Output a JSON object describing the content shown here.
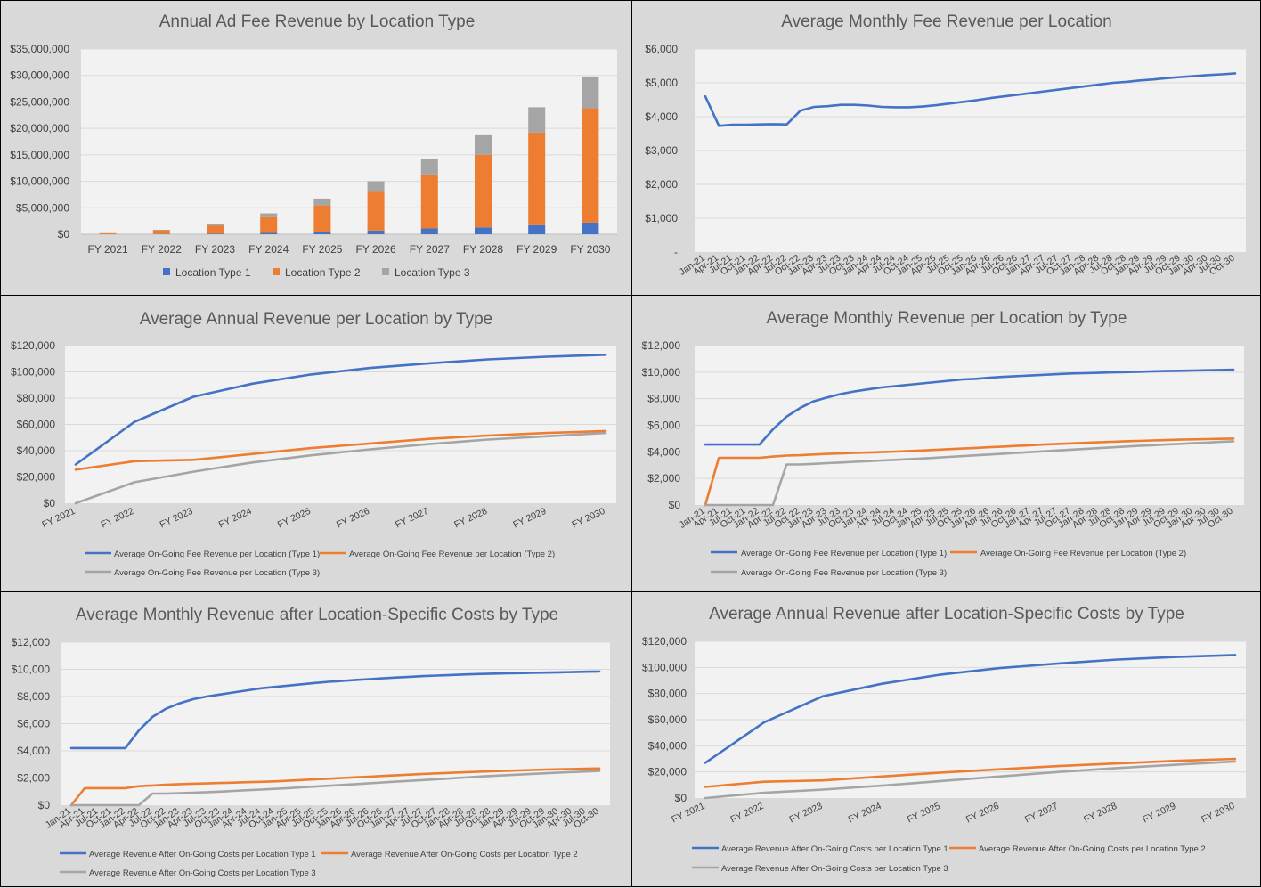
{
  "colors": {
    "type1": "#4472c4",
    "type2": "#ed7d31",
    "type3": "#a5a5a5",
    "plot_bg": "#f2f2f2",
    "panel_bg": "#d9d9d9",
    "grid": "#d9d9d9"
  },
  "chart_data": [
    {
      "id": "annual-ad-fee",
      "type": "bar",
      "stacked": true,
      "title": "Annual Ad Fee Revenue by Location Type",
      "categories": [
        "FY 2021",
        "FY 2022",
        "FY 2023",
        "FY 2024",
        "FY 2025",
        "FY 2026",
        "FY 2027",
        "FY 2028",
        "FY 2029",
        "FY 2030"
      ],
      "series": [
        {
          "name": "Location Type 1",
          "values": [
            20000,
            50000,
            100000,
            250000,
            450000,
            700000,
            1100000,
            1300000,
            1700000,
            2200000
          ]
        },
        {
          "name": "Location Type 2",
          "values": [
            180000,
            700000,
            1500000,
            3000000,
            5000000,
            7300000,
            10200000,
            13700000,
            17500000,
            21600000
          ]
        },
        {
          "name": "Location Type 3",
          "values": [
            0,
            100000,
            300000,
            700000,
            1300000,
            2000000,
            2900000,
            3700000,
            4800000,
            6000000
          ]
        }
      ],
      "y_ticks": [
        "$0",
        "$5,000,000",
        "$10,000,000",
        "$15,000,000",
        "$20,000,000",
        "$25,000,000",
        "$30,000,000",
        "$35,000,000"
      ],
      "ylim": [
        0,
        35000000
      ],
      "legend": "bottom",
      "grid": true
    },
    {
      "id": "avg-monthly-fee",
      "type": "line",
      "title": "Average Monthly Fee Revenue per Location",
      "x_labels": [
        "Jan-21",
        "Apr-21",
        "Jul-21",
        "Oct-21",
        "Jan-22",
        "Apr-22",
        "Jul-22",
        "Oct-22",
        "Jan-23",
        "Apr-23",
        "Jul-23",
        "Oct-23",
        "Jan-24",
        "Apr-24",
        "Jul-24",
        "Oct-24",
        "Jan-25",
        "Apr-25",
        "Jul-25",
        "Oct-25",
        "Jan-26",
        "Apr-26",
        "Jul-26",
        "Oct-26",
        "Jan-27",
        "Apr-27",
        "Jul-27",
        "Oct-27",
        "Jan-28",
        "Apr-28",
        "Jul-28",
        "Oct-28",
        "Jan-29",
        "Apr-29",
        "Jul-29",
        "Oct-29",
        "Jan-30",
        "Apr-30",
        "Jul-30",
        "Oct-30"
      ],
      "series": [
        {
          "values": [
            4600,
            3730,
            3760,
            3760,
            3770,
            3780,
            3770,
            4180,
            4290,
            4310,
            4350,
            4350,
            4330,
            4290,
            4280,
            4280,
            4300,
            4340,
            4390,
            4440,
            4490,
            4550,
            4600,
            4650,
            4700,
            4750,
            4800,
            4850,
            4900,
            4950,
            5000,
            5030,
            5070,
            5100,
            5140,
            5170,
            5200,
            5230,
            5250,
            5280
          ]
        }
      ],
      "y_ticks": [
        "-",
        "$1,000",
        "$2,000",
        "$3,000",
        "$4,000",
        "$5,000",
        "$6,000"
      ],
      "ylim": [
        0,
        6000
      ],
      "grid": true
    },
    {
      "id": "avg-annual-rev",
      "type": "line",
      "title": "Average Annual Revenue per Location by Type",
      "x_labels": [
        "FY 2021",
        "FY 2022",
        "FY 2023",
        "FY 2024",
        "FY 2025",
        "FY 2026",
        "FY 2027",
        "FY 2028",
        "FY 2029",
        "FY 2030"
      ],
      "series": [
        {
          "name": "Average On-Going Fee Revenue per Location (Type 1)",
          "values": [
            29500,
            62000,
            81000,
            91000,
            98000,
            103000,
            106500,
            109500,
            111500,
            113000
          ]
        },
        {
          "name": "Average On-Going Fee Revenue per Location (Type 2)",
          "values": [
            25500,
            32000,
            33000,
            37500,
            42000,
            45500,
            49000,
            51500,
            53500,
            55000
          ]
        },
        {
          "name": "Average On-Going Fee Revenue per Location (Type 3)",
          "values": [
            0,
            16000,
            24000,
            31000,
            36500,
            41000,
            45000,
            48500,
            51000,
            53500
          ]
        }
      ],
      "y_ticks": [
        "$0",
        "$20,000",
        "$40,000",
        "$60,000",
        "$80,000",
        "$100,000",
        "$120,000"
      ],
      "ylim": [
        0,
        120000
      ],
      "legend": "bottom",
      "grid": true
    },
    {
      "id": "avg-monthly-rev",
      "type": "line",
      "title": "Average Monthly Revenue per Location by Type",
      "x_labels": [
        "Jan-21",
        "Apr-21",
        "Jul-21",
        "Oct-21",
        "Jan-22",
        "Apr-22",
        "Jul-22",
        "Oct-22",
        "Jan-23",
        "Apr-23",
        "Jul-23",
        "Oct-23",
        "Jan-24",
        "Apr-24",
        "Jul-24",
        "Oct-24",
        "Jan-25",
        "Apr-25",
        "Jul-25",
        "Oct-25",
        "Jan-26",
        "Apr-26",
        "Jul-26",
        "Oct-26",
        "Jan-27",
        "Apr-27",
        "Jul-27",
        "Oct-27",
        "Jan-28",
        "Apr-28",
        "Jul-28",
        "Oct-28",
        "Jan-29",
        "Apr-29",
        "Jul-29",
        "Oct-29",
        "Jan-30",
        "Apr-30",
        "Jul-30",
        "Oct-30"
      ],
      "series": [
        {
          "name": "Average On-Going Fee Revenue per Location (Type 1)",
          "values": [
            4550,
            4550,
            4550,
            4550,
            4550,
            5700,
            6650,
            7300,
            7800,
            8100,
            8350,
            8550,
            8700,
            8850,
            8950,
            9050,
            9150,
            9250,
            9350,
            9450,
            9500,
            9580,
            9650,
            9700,
            9750,
            9800,
            9850,
            9900,
            9920,
            9950,
            9980,
            10000,
            10030,
            10060,
            10080,
            10100,
            10120,
            10140,
            10160,
            10180
          ]
        },
        {
          "name": "Average On-Going Fee Revenue per Location (Type 2)",
          "values": [
            0,
            3550,
            3550,
            3550,
            3550,
            3650,
            3720,
            3750,
            3800,
            3850,
            3880,
            3920,
            3950,
            3980,
            4020,
            4060,
            4100,
            4150,
            4200,
            4250,
            4300,
            4350,
            4400,
            4450,
            4500,
            4550,
            4600,
            4640,
            4680,
            4720,
            4760,
            4800,
            4830,
            4860,
            4890,
            4920,
            4940,
            4960,
            4980,
            5000
          ]
        },
        {
          "name": "Average On-Going Fee Revenue per Location (Type 3)",
          "values": [
            0,
            0,
            0,
            0,
            0,
            0,
            3050,
            3050,
            3100,
            3150,
            3200,
            3250,
            3300,
            3350,
            3400,
            3450,
            3500,
            3560,
            3620,
            3680,
            3740,
            3800,
            3860,
            3920,
            3980,
            4040,
            4100,
            4160,
            4220,
            4280,
            4340,
            4400,
            4450,
            4500,
            4550,
            4600,
            4650,
            4700,
            4750,
            4800
          ]
        }
      ],
      "y_ticks": [
        "$0",
        "$2,000",
        "$4,000",
        "$6,000",
        "$8,000",
        "$10,000",
        "$12,000"
      ],
      "ylim": [
        0,
        12000
      ],
      "legend": "bottom",
      "grid": true
    },
    {
      "id": "avg-monthly-after-costs",
      "type": "line",
      "title": "Average Monthly Revenue after Location-Specific Costs by Type",
      "x_labels": [
        "Jan-21",
        "Apr-21",
        "Jul-21",
        "Oct-21",
        "Jan-22",
        "Apr-22",
        "Jul-22",
        "Oct-22",
        "Jan-23",
        "Apr-23",
        "Jul-23",
        "Oct-23",
        "Jan-24",
        "Apr-24",
        "Jul-24",
        "Oct-24",
        "Jan-25",
        "Apr-25",
        "Jul-25",
        "Oct-25",
        "Jan-26",
        "Apr-26",
        "Jul-26",
        "Oct-26",
        "Jan-27",
        "Apr-27",
        "Jul-27",
        "Oct-27",
        "Jan-28",
        "Apr-28",
        "Jul-28",
        "Oct-28",
        "Jan-29",
        "Apr-29",
        "Jul-29",
        "Oct-29",
        "Jan-30",
        "Apr-30",
        "Jul-30",
        "Oct-30"
      ],
      "series": [
        {
          "name": "Average Revenue After On-Going Costs per Location Type 1",
          "values": [
            4200,
            4200,
            4200,
            4200,
            4200,
            5500,
            6500,
            7100,
            7500,
            7800,
            8000,
            8150,
            8300,
            8450,
            8600,
            8700,
            8800,
            8900,
            9000,
            9080,
            9150,
            9220,
            9280,
            9340,
            9400,
            9450,
            9500,
            9540,
            9580,
            9620,
            9650,
            9680,
            9700,
            9720,
            9740,
            9760,
            9780,
            9800,
            9820,
            9840
          ]
        },
        {
          "name": "Average Revenue After On-Going Costs per Location Type 2",
          "values": [
            0,
            1250,
            1250,
            1250,
            1250,
            1400,
            1450,
            1500,
            1550,
            1580,
            1600,
            1630,
            1660,
            1690,
            1720,
            1750,
            1800,
            1850,
            1900,
            1950,
            2000,
            2050,
            2100,
            2150,
            2200,
            2250,
            2300,
            2340,
            2380,
            2420,
            2460,
            2500,
            2530,
            2560,
            2590,
            2620,
            2640,
            2660,
            2680,
            2700
          ]
        },
        {
          "name": "Average Revenue After On-Going Costs per Location Type 3",
          "values": [
            0,
            0,
            0,
            0,
            0,
            0,
            850,
            850,
            880,
            920,
            960,
            1000,
            1050,
            1100,
            1150,
            1200,
            1250,
            1310,
            1370,
            1430,
            1490,
            1550,
            1610,
            1670,
            1730,
            1790,
            1850,
            1910,
            1970,
            2030,
            2090,
            2150,
            2200,
            2250,
            2300,
            2350,
            2400,
            2440,
            2480,
            2520
          ]
        }
      ],
      "y_ticks": [
        "$0",
        "$2,000",
        "$4,000",
        "$6,000",
        "$8,000",
        "$10,000",
        "$12,000"
      ],
      "ylim": [
        0,
        12000
      ],
      "legend": "bottom",
      "grid": true
    },
    {
      "id": "avg-annual-after-costs",
      "type": "line",
      "title": "Average Annual Revenue after Location-Specific Costs by Type",
      "x_labels": [
        "FY 2021",
        "FY 2022",
        "FY 2023",
        "FY 2024",
        "FY 2025",
        "FY 2026",
        "FY 2027",
        "FY 2028",
        "FY 2029",
        "FY 2030"
      ],
      "series": [
        {
          "name": "Average Revenue After On-Going Costs per Location Type 1",
          "values": [
            27000,
            58000,
            78000,
            87500,
            94500,
            99500,
            103000,
            106000,
            108000,
            109500
          ]
        },
        {
          "name": "Average Revenue After On-Going Costs per Location Type 2",
          "values": [
            8500,
            12500,
            13500,
            16500,
            19500,
            22000,
            24500,
            26500,
            28500,
            30000
          ]
        },
        {
          "name": "Average Revenue After On-Going Costs per Location Type 3",
          "values": [
            0,
            4000,
            6500,
            9500,
            13000,
            16500,
            20000,
            23000,
            25500,
            28000
          ]
        }
      ],
      "y_ticks": [
        "$0",
        "$20,000",
        "$40,000",
        "$60,000",
        "$80,000",
        "$100,000",
        "$120,000"
      ],
      "ylim": [
        0,
        120000
      ],
      "legend": "bottom",
      "grid": true
    }
  ]
}
